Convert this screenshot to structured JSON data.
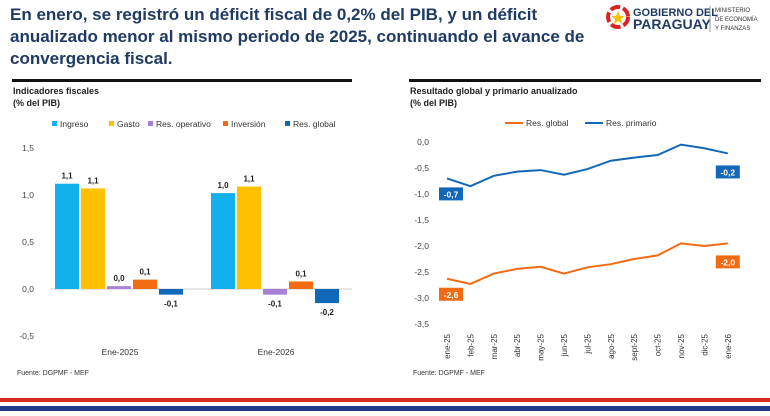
{
  "headline": "En enero, se registró un déficit fiscal de 0,2% del PIB, y un déficit anualizado menor al mismo periodo de 2025, continuando el avance de convergencia fiscal.",
  "logo": {
    "line1": "GOBIERNO DEL",
    "line2": "PARAGUAY",
    "ministry": [
      "MINISTERIO",
      "DE ECONOMÍA",
      "Y FINANZAS"
    ]
  },
  "colors": {
    "title": "#1f3b63",
    "ingreso": "#12b0ec",
    "gasto": "#ffc000",
    "res_operativo": "#a77fd6",
    "inversion": "#f26b12",
    "res_global_bar": "#1068b8",
    "line_global": "#f26b12",
    "line_primario": "#1268b8"
  },
  "chart_data": [
    {
      "type": "bar",
      "title": "Indicadores fiscales",
      "subtitle": "(% del PIB)",
      "categories": [
        "Ene-2025",
        "Ene-2026"
      ],
      "ylim": [
        -0.5,
        1.5
      ],
      "yticks": [
        "1,5",
        "1,0",
        "0,5",
        "0,0",
        "-0,5"
      ],
      "legend": "top",
      "series": [
        {
          "name": "Ingreso",
          "values": [
            1.12,
            1.02
          ],
          "labels": [
            "1,1",
            "1,0"
          ]
        },
        {
          "name": "Gasto",
          "values": [
            1.07,
            1.09
          ],
          "labels": [
            "1,1",
            "1,1"
          ]
        },
        {
          "name": "Res. operativo",
          "values": [
            0.03,
            -0.06
          ],
          "labels": [
            "0,0",
            "-0,1"
          ]
        },
        {
          "name": "Inversión",
          "values": [
            0.1,
            0.08
          ],
          "labels": [
            "0,1",
            "0,1"
          ]
        },
        {
          "name": "Res. global",
          "values": [
            -0.06,
            -0.15
          ],
          "labels": [
            "-0,1",
            "-0,2"
          ]
        }
      ],
      "source": "Fuente: DGPMF - MEF"
    },
    {
      "type": "line",
      "title": "Resultado global y primario anualizado",
      "subtitle": "(% del PIB)",
      "categories": [
        "ene-25",
        "feb-25",
        "mar-25",
        "abr-25",
        "may-25",
        "jun-25",
        "jul-25",
        "ago-25",
        "sept-25",
        "oct-25",
        "nov-25",
        "dic-25",
        "ene-26"
      ],
      "ylim": [
        -3.5,
        0
      ],
      "yticks": [
        "0,0",
        "-0,5",
        "-1,0",
        "-1,5",
        "-2,0",
        "-2,5",
        "-3,0",
        "-3,5"
      ],
      "legend": "top",
      "series": [
        {
          "name": "Res. global",
          "values": [
            -2.63,
            -2.73,
            -2.53,
            -2.44,
            -2.4,
            -2.53,
            -2.41,
            -2.35,
            -2.25,
            -2.18,
            -1.95,
            -2.0,
            -1.95
          ],
          "first_label": "-2,6",
          "last_label": "-2,0"
        },
        {
          "name": "Res. primario",
          "values": [
            -0.7,
            -0.85,
            -0.65,
            -0.57,
            -0.54,
            -0.63,
            -0.52,
            -0.36,
            -0.3,
            -0.25,
            -0.05,
            -0.12,
            -0.22
          ],
          "first_label": "-0,7",
          "last_label": "-0,2"
        }
      ],
      "source": "Fuente: DGPMF - MEF"
    }
  ]
}
